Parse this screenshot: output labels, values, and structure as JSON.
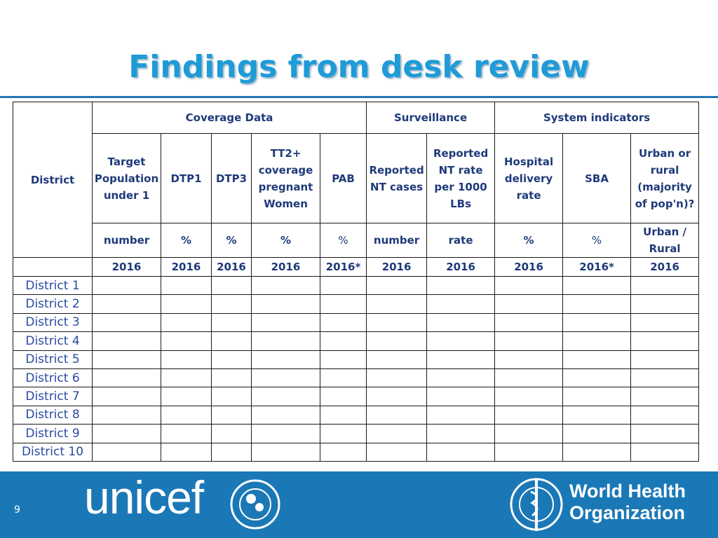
{
  "title": "Findings from desk review",
  "table": {
    "district_header": "District",
    "groups": [
      {
        "label": "Coverage Data",
        "span": 5
      },
      {
        "label": "Surveillance",
        "span": 2
      },
      {
        "label": "System indicators",
        "span": 3
      }
    ],
    "columns": [
      {
        "name": "Target Population under 1",
        "unit": "number",
        "year": "2016"
      },
      {
        "name": "DTP1",
        "unit": "%",
        "year": "2016"
      },
      {
        "name": "DTP3",
        "unit": "%",
        "year": "2016"
      },
      {
        "name": "TT2+ coverage pregnant Women",
        "unit": "%",
        "year": "2016"
      },
      {
        "name": "PAB",
        "unit": "%",
        "year": "2016*"
      },
      {
        "name": "Reported NT cases",
        "unit": "number",
        "year": "2016"
      },
      {
        "name": "Reported NT rate per 1000 LBs",
        "unit": "rate",
        "year": "2016"
      },
      {
        "name": "Hospital delivery rate",
        "unit": "%",
        "year": "2016"
      },
      {
        "name": "SBA",
        "unit": "%",
        "year": "2016*"
      },
      {
        "name": "Urban or rural (majority of pop'n)?",
        "unit": "Urban / Rural",
        "year": "2016"
      }
    ],
    "rows": [
      "District 1",
      "District 2",
      "District 3",
      "District 4",
      "District 5",
      "District 6",
      "District 7",
      "District 8",
      "District 9",
      "District 10"
    ]
  },
  "footer": {
    "page_number": "9",
    "left_logo": "unicef",
    "right_logo": "World Health Organization"
  }
}
